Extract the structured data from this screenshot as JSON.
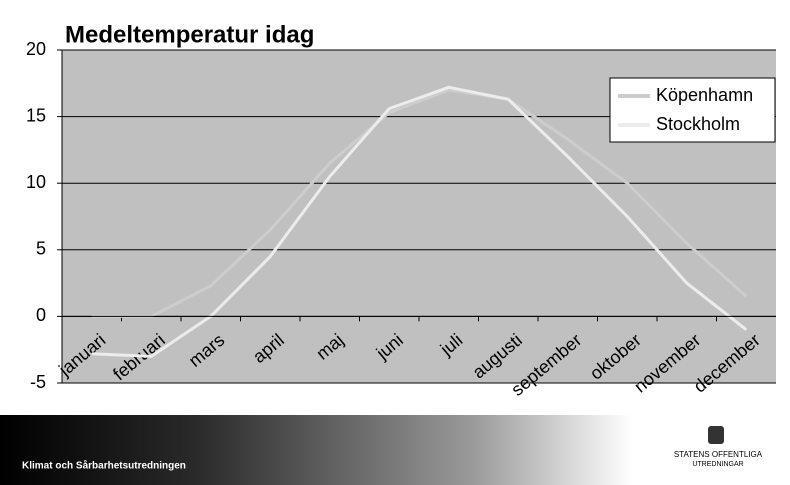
{
  "chart_data": {
    "type": "line",
    "title": "Medeltemperatur idag",
    "categories": [
      "januari",
      "februari",
      "mars",
      "april",
      "maj",
      "juni",
      "juli",
      "augusti",
      "september",
      "oktober",
      "november",
      "december"
    ],
    "series": [
      {
        "name": "Köpenhamn",
        "color": "#cdcdcd",
        "values": [
          0,
          0,
          2.3,
          6.5,
          11.5,
          15.3,
          17.0,
          16.3,
          13.3,
          10,
          5.5,
          1.5
        ]
      },
      {
        "name": "Stockholm",
        "color": "#ececec",
        "values": [
          -2.8,
          -3,
          0,
          4.5,
          10.5,
          15.6,
          17.2,
          16.3,
          12,
          7.5,
          2.5,
          -1
        ]
      }
    ],
    "ylim": [
      -5,
      20
    ],
    "yticks": [
      -5,
      0,
      5,
      10,
      15,
      20
    ],
    "grid": true,
    "legend": "top-right"
  },
  "footer": {
    "text": "Klimat och Sårbarhetsutredningen",
    "logo": [
      "STATENS OFFENTLIGA",
      "UTREDNINGAR"
    ]
  }
}
